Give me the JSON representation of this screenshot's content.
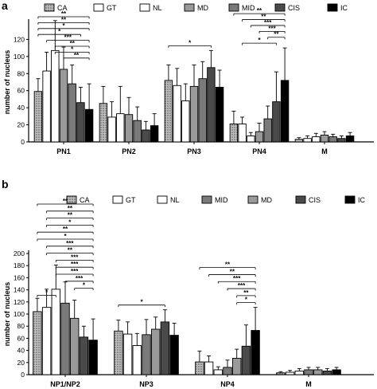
{
  "chart_data": [
    {
      "panel": "a",
      "type": "bar",
      "ylabel": "number of nucleus",
      "ylim": [
        0,
        140
      ],
      "yticks": [
        0,
        20,
        40,
        60,
        80,
        100,
        120
      ],
      "categories": [
        "PN1",
        "PN2",
        "PN3",
        "PN4",
        "M"
      ],
      "legend_position": "top",
      "series": [
        {
          "name": "CA",
          "pattern": "dots",
          "values": [
            59,
            45,
            72,
            21,
            3
          ],
          "errors": [
            15,
            20,
            18,
            15,
            2
          ]
        },
        {
          "name": "GT",
          "pattern": "white",
          "values": [
            83,
            29,
            66,
            21,
            4
          ],
          "errors": [
            22,
            18,
            20,
            8,
            3
          ]
        },
        {
          "name": "NL",
          "pattern": "white",
          "values": [
            107,
            33,
            48,
            7,
            6
          ],
          "errors": [
            35,
            32,
            20,
            4,
            4
          ]
        },
        {
          "name": "MD",
          "pattern": "grey",
          "values": [
            85,
            32,
            65,
            12,
            8
          ],
          "errors": [
            26,
            20,
            25,
            10,
            4
          ]
        },
        {
          "name": "MID",
          "pattern": "dark-grey",
          "values": [
            68,
            25,
            74,
            27,
            6
          ],
          "errors": [
            22,
            16,
            20,
            15,
            3
          ]
        },
        {
          "name": "CIS",
          "pattern": "darker-grey",
          "values": [
            46,
            14,
            87,
            47,
            4
          ],
          "errors": [
            18,
            10,
            20,
            35,
            3
          ]
        },
        {
          "name": "IC",
          "pattern": "black",
          "values": [
            38,
            19,
            64,
            72,
            7
          ],
          "errors": [
            30,
            14,
            20,
            38,
            4
          ]
        }
      ],
      "annotations": [
        {
          "group": 0,
          "from": 0,
          "to": 6,
          "label": "**"
        },
        {
          "group": 0,
          "from": 0,
          "to": 6,
          "label": "**"
        },
        {
          "group": 0,
          "from": 0,
          "to": 6,
          "label": "*"
        },
        {
          "group": 0,
          "from": 0,
          "to": 5,
          "label": "*"
        },
        {
          "group": 0,
          "from": 1,
          "to": 6,
          "label": "***"
        },
        {
          "group": 0,
          "from": 2,
          "to": 6,
          "label": "**"
        },
        {
          "group": 0,
          "from": 2,
          "to": 6,
          "label": "*"
        },
        {
          "group": 0,
          "from": 3,
          "to": 6,
          "label": "**"
        },
        {
          "group": 2,
          "from": 0,
          "to": 5,
          "label": "*"
        },
        {
          "group": 3,
          "from": 0,
          "to": 6,
          "label": "**"
        },
        {
          "group": 3,
          "from": 1,
          "to": 6,
          "label": "**"
        },
        {
          "group": 3,
          "from": 2,
          "to": 6,
          "label": "***"
        },
        {
          "group": 3,
          "from": 3,
          "to": 6,
          "label": "***"
        },
        {
          "group": 3,
          "from": 4,
          "to": 6,
          "label": "**"
        },
        {
          "group": 3,
          "from": 1,
          "to": 5,
          "label": "*"
        }
      ]
    },
    {
      "panel": "b",
      "type": "bar",
      "ylabel": "number of nucleus",
      "ylim": [
        0,
        200
      ],
      "yticks": [
        0,
        20,
        40,
        60,
        80,
        100,
        120,
        140,
        160,
        180,
        200
      ],
      "categories": [
        "NP1/NP2",
        "NP3",
        "NP4",
        "M"
      ],
      "legend_position": "top",
      "series": [
        {
          "name": "CA",
          "pattern": "dots",
          "values": [
            104,
            72,
            21,
            3
          ],
          "errors": [
            22,
            18,
            18,
            2
          ]
        },
        {
          "name": "GT",
          "pattern": "white",
          "values": [
            111,
            67,
            21,
            4
          ],
          "errors": [
            30,
            20,
            10,
            3
          ]
        },
        {
          "name": "NL",
          "pattern": "white",
          "values": [
            141,
            48,
            8,
            6
          ],
          "errors": [
            40,
            20,
            5,
            4
          ]
        },
        {
          "name": "MID",
          "pattern": "dark-grey",
          "values": [
            118,
            66,
            12,
            8
          ],
          "errors": [
            35,
            25,
            12,
            4
          ]
        },
        {
          "name": "MD",
          "pattern": "grey",
          "values": [
            93,
            75,
            27,
            8
          ],
          "errors": [
            30,
            20,
            15,
            4
          ]
        },
        {
          "name": "CIS",
          "pattern": "darker-grey",
          "values": [
            62,
            87,
            47,
            6
          ],
          "errors": [
            18,
            20,
            35,
            4
          ]
        },
        {
          "name": "IC",
          "pattern": "black",
          "values": [
            57,
            65,
            73,
            8
          ],
          "errors": [
            35,
            20,
            38,
            4
          ]
        }
      ],
      "annotations": [
        {
          "group": 0,
          "from": 0,
          "to": 6,
          "label": "**"
        },
        {
          "group": 0,
          "from": 1,
          "to": 6,
          "label": "**"
        },
        {
          "group": 0,
          "from": 1,
          "to": 6,
          "label": "**"
        },
        {
          "group": 0,
          "from": 1,
          "to": 6,
          "label": "*"
        },
        {
          "group": 0,
          "from": 0,
          "to": 6,
          "label": "**"
        },
        {
          "group": 0,
          "from": 0,
          "to": 6,
          "label": "*"
        },
        {
          "group": 0,
          "from": 1,
          "to": 6,
          "label": "***"
        },
        {
          "group": 0,
          "from": 1,
          "to": 6,
          "label": "**"
        },
        {
          "group": 0,
          "from": 2,
          "to": 6,
          "label": "***"
        },
        {
          "group": 0,
          "from": 2,
          "to": 6,
          "label": "***"
        },
        {
          "group": 0,
          "from": 2,
          "to": 6,
          "label": "***"
        },
        {
          "group": 0,
          "from": 3,
          "to": 6,
          "label": "***"
        },
        {
          "group": 0,
          "from": 4,
          "to": 6,
          "label": "*"
        },
        {
          "group": 0,
          "from": 0,
          "to": 2,
          "label": "*"
        },
        {
          "group": 1,
          "from": 0,
          "to": 5,
          "label": "*"
        },
        {
          "group": 2,
          "from": 0,
          "to": 6,
          "label": "**"
        },
        {
          "group": 2,
          "from": 1,
          "to": 6,
          "label": "**"
        },
        {
          "group": 2,
          "from": 2,
          "to": 6,
          "label": "***"
        },
        {
          "group": 2,
          "from": 3,
          "to": 6,
          "label": "***"
        },
        {
          "group": 2,
          "from": 4,
          "to": 6,
          "label": "**"
        },
        {
          "group": 2,
          "from": 4,
          "to": 6,
          "label": "*"
        }
      ]
    }
  ]
}
